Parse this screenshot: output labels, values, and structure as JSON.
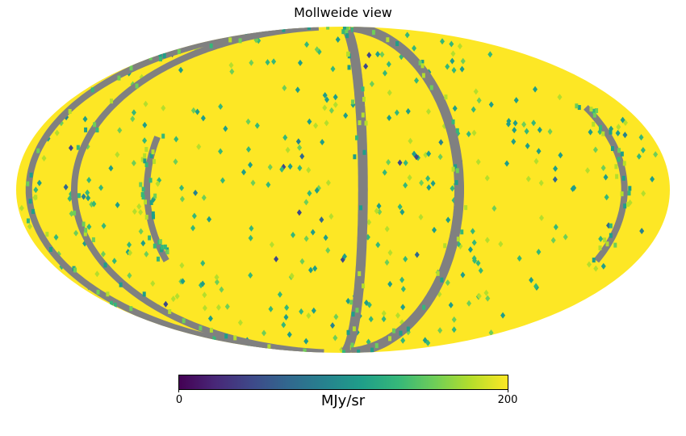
{
  "chart_data": {
    "type": "heatmap",
    "projection": "mollweide",
    "title": "Mollweide view",
    "colormap": "viridis",
    "colorbar": {
      "min": 0,
      "max": 200,
      "tick_labels": [
        "0",
        "200"
      ],
      "label": "MJy/sr"
    },
    "background_value_color": "#fde725",
    "masked_color": "#808080",
    "masked_band_longitudes_deg": [
      -173,
      -148,
      -108,
      11,
      64,
      155
    ]
  }
}
